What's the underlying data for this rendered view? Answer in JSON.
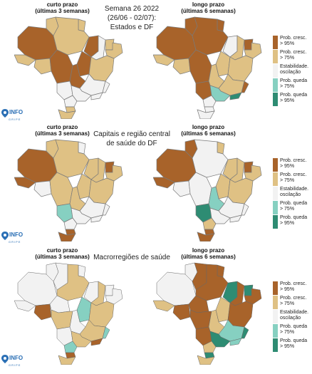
{
  "colors": {
    "cresc95": "#a8632a",
    "cresc75": "#dfc184",
    "estab": "#f2f2f2",
    "queda75": "#86d0c1",
    "queda95": "#2e8c73",
    "border": "#7a7a7a",
    "logo": "#2a6fb5"
  },
  "panels": [
    {
      "left_header": "curto prazo\n(últimas 3 semanas)",
      "right_header": "longo prazo\n(últimas 6 semanas)",
      "title": "Semana 26 2022\n(26/06 - 02/07):\nEstados e DF"
    },
    {
      "left_header": "curto prazo\n(últimas 3 semanas)",
      "right_header": "longo prazo\n(últimas 6 semanas)",
      "title": "Capitais e região central\nde saúde do DF"
    },
    {
      "left_header": "curto prazo\n(últimas 3 semanas)",
      "right_header": "longo prazo\n(últimas 6 semanas)",
      "title": "Macrorregiões de saúde"
    }
  ],
  "legend": [
    {
      "key": "cresc95",
      "label": "Prob. cresc.\n> 95%"
    },
    {
      "key": "cresc75",
      "label": "Prob. cresc.\n> 75%"
    },
    {
      "key": "estab",
      "label": "Estabilidade.\noscilação"
    },
    {
      "key": "queda75",
      "label": "Prob. queda\n> 75%"
    },
    {
      "key": "queda95",
      "label": "Prob. queda\n> 95%"
    }
  ],
  "logo": {
    "main": "INFO",
    "sub": "GRIPE"
  }
}
